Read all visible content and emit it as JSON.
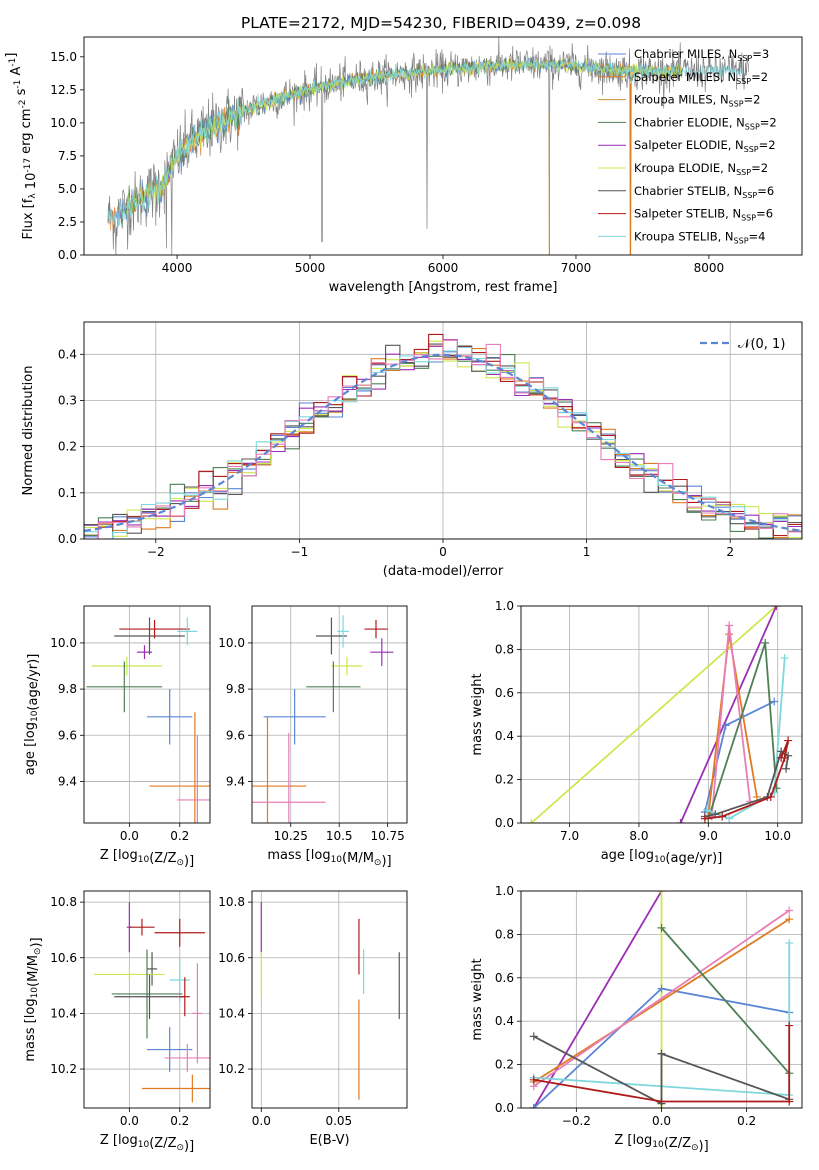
{
  "title": "PLATE=2172, MJD=54230, FIBERID=0439, z=0.098",
  "colors": {
    "chabrier_miles": "#5b86d6",
    "salpeter_miles": "#e07b21",
    "kroupa_miles": "#c99030",
    "chabrier_elodie": "#4f7f57",
    "salpeter_elodie": "#9b2fb4",
    "kroupa_elodie": "#cde84f",
    "chabrier_stelib": "#575757",
    "salpeter_stelib": "#b01c1c",
    "kroupa_stelib": "#7ed7dc",
    "gaussian": "#5b86d6",
    "extra_pink": "#e87eb7",
    "data_grey": "#808080"
  },
  "legend": [
    "Chabrier MILES, N$_{SSP}$=3",
    "Salpeter MILES, N$_{SSP}$=2",
    "Kroupa MILES, N$_{SSP}$=2",
    "Chabrier ELODIE, N$_{SSP}$=2",
    "Salpeter ELODIE, N$_{SSP}$=2",
    "Kroupa ELODIE, N$_{SSP}$=2",
    "Chabrier STELIB, N$_{SSP}$=6",
    "Salpeter STELIB, N$_{SSP}$=6",
    "Kroupa STELIB, N$_{SSP}$=4"
  ],
  "legend_display": [
    [
      "Chabrier MILES, N",
      "SSP",
      "=3"
    ],
    [
      "Salpeter MILES, N",
      "SSP",
      "=2"
    ],
    [
      "Kroupa MILES, N",
      "SSP",
      "=2"
    ],
    [
      "Chabrier ELODIE, N",
      "SSP",
      "=2"
    ],
    [
      "Salpeter ELODIE, N",
      "SSP",
      "=2"
    ],
    [
      "Kroupa ELODIE, N",
      "SSP",
      "=2"
    ],
    [
      "Chabrier STELIB, N",
      "SSP",
      "=6"
    ],
    [
      "Salpeter STELIB, N",
      "SSP",
      "=6"
    ],
    [
      "Kroupa STELIB, N",
      "SSP",
      "=4"
    ]
  ],
  "chart_data": [
    {
      "id": "spectrum",
      "type": "line",
      "xlabel": "wavelength [Angstrom, rest frame]",
      "ylabel": "Flux [f_λ 10^-17 erg cm^-2 s^-1 A^-1]",
      "xlim": [
        3300,
        8700
      ],
      "ylim": [
        0,
        16.5
      ],
      "xticks": [
        4000,
        5000,
        6000,
        7000,
        8000
      ],
      "yticks": [
        0.0,
        2.5,
        5.0,
        7.5,
        10.0,
        12.5,
        15.0
      ],
      "continuum": [
        [
          3500,
          2.8
        ],
        [
          3700,
          4.0
        ],
        [
          3900,
          5.5
        ],
        [
          4000,
          7.5
        ],
        [
          4200,
          9.3
        ],
        [
          4400,
          10.4
        ],
        [
          4600,
          11.3
        ],
        [
          4800,
          12.0
        ],
        [
          5000,
          12.5
        ],
        [
          5200,
          13.0
        ],
        [
          5500,
          13.5
        ],
        [
          5800,
          13.8
        ],
        [
          6100,
          14.1
        ],
        [
          6400,
          14.3
        ],
        [
          6700,
          14.4
        ],
        [
          7000,
          14.3
        ],
        [
          7300,
          14.0
        ],
        [
          7600,
          13.9
        ],
        [
          8000,
          13.9
        ],
        [
          8300,
          14.0
        ]
      ],
      "spikes": [
        [
          5090,
          1.0
        ],
        [
          5880,
          2.0
        ],
        [
          6800,
          0.0
        ],
        [
          7410,
          0.0
        ],
        [
          3920,
          0.5
        ],
        [
          3840,
          2.2
        ],
        [
          3540,
          0.0
        ],
        [
          3960,
          0.0
        ]
      ],
      "grid": false,
      "legend_position": "top-right"
    },
    {
      "id": "residuals",
      "type": "histogram",
      "xlabel": "(data-model)/error",
      "ylabel": "Normed distribution",
      "xlim": [
        -2.5,
        2.5
      ],
      "ylim": [
        0,
        0.47
      ],
      "xticks": [
        -2,
        -1,
        0,
        1,
        2
      ],
      "yticks": [
        0.0,
        0.1,
        0.2,
        0.3,
        0.4
      ],
      "bin_width": 0.1,
      "grid": true,
      "gaussian_label": "𝒩(0, 1)",
      "legend_position": "top-right"
    },
    {
      "id": "age_vs_Z",
      "type": "errorbar",
      "xlabel": "Z [log10(Z/Z⊙)]",
      "ylabel": "age [log10(age/yr)]",
      "xlim": [
        -0.18,
        0.32
      ],
      "ylim": [
        9.22,
        10.16
      ],
      "xticks": [
        0.0,
        0.2
      ],
      "yticks": [
        9.4,
        9.6,
        9.8,
        10.0
      ],
      "grid": true,
      "points": [
        {
          "c": "chabrier_miles",
          "x": 0.16,
          "xerr": 0.09,
          "y": 9.68,
          "yerr": 0.12
        },
        {
          "c": "salpeter_miles",
          "x": 0.26,
          "xerr": 0.18,
          "y": 9.38,
          "yerr": 0.32
        },
        {
          "c": "extra_pink",
          "x": 0.27,
          "xerr": 0.08,
          "y": 9.32,
          "yerr": 0.28
        },
        {
          "c": "kroupa_elodie",
          "x": -0.01,
          "xerr": 0.14,
          "y": 9.9,
          "yerr": 0.04
        },
        {
          "c": "chabrier_elodie",
          "x": -0.02,
          "xerr": 0.15,
          "y": 9.81,
          "yerr": 0.11
        },
        {
          "c": "chabrier_stelib",
          "x": 0.08,
          "xerr": 0.14,
          "y": 10.03,
          "yerr": 0.08
        },
        {
          "c": "salpeter_stelib",
          "x": 0.1,
          "xerr": 0.14,
          "y": 10.06,
          "yerr": 0.04
        },
        {
          "c": "salpeter_elodie",
          "x": 0.06,
          "xerr": 0.03,
          "y": 9.96,
          "yerr": 0.03
        },
        {
          "c": "kroupa_stelib",
          "x": 0.23,
          "xerr": 0.04,
          "y": 10.05,
          "yerr": 0.06
        }
      ]
    },
    {
      "id": "age_vs_mass",
      "type": "errorbar",
      "xlabel": "mass [log10(M/M⊙)]",
      "ylabel": "",
      "xlim": [
        10.05,
        10.85
      ],
      "ylim": [
        9.22,
        10.16
      ],
      "xticks": [
        10.25,
        10.5,
        10.75
      ],
      "yticks": [
        9.4,
        9.6,
        9.8,
        10.0
      ],
      "grid": true,
      "points": [
        {
          "c": "chabrier_miles",
          "x": 10.27,
          "xerr": 0.16,
          "y": 9.68,
          "yerr": 0.12
        },
        {
          "c": "salpeter_miles",
          "x": 10.13,
          "xerr": 0.2,
          "y": 9.38,
          "yerr": 0.3
        },
        {
          "c": "extra_pink",
          "x": 10.24,
          "xerr": 0.19,
          "y": 9.31,
          "yerr": 0.3
        },
        {
          "c": "kroupa_elodie",
          "x": 10.54,
          "xerr": 0.08,
          "y": 9.9,
          "yerr": 0.04
        },
        {
          "c": "chabrier_elodie",
          "x": 10.47,
          "xerr": 0.14,
          "y": 9.81,
          "yerr": 0.11
        },
        {
          "c": "chabrier_stelib",
          "x": 10.46,
          "xerr": 0.08,
          "y": 10.03,
          "yerr": 0.08
        },
        {
          "c": "salpeter_stelib",
          "x": 10.69,
          "xerr": 0.06,
          "y": 10.06,
          "yerr": 0.04
        },
        {
          "c": "salpeter_elodie",
          "x": 10.72,
          "xerr": 0.06,
          "y": 9.96,
          "yerr": 0.06
        },
        {
          "c": "kroupa_stelib",
          "x": 10.52,
          "xerr": 0.03,
          "y": 10.05,
          "yerr": 0.07
        }
      ]
    },
    {
      "id": "weight_vs_age",
      "type": "line",
      "xlabel": "age [log10(age/yr)]",
      "ylabel": "mass weight",
      "xlim": [
        6.3,
        10.35
      ],
      "ylim": [
        0,
        1.0
      ],
      "xticks": [
        7,
        8,
        9,
        10
      ],
      "yticks": [
        0.0,
        0.2,
        0.4,
        0.6,
        0.8,
        1.0
      ],
      "grid": true,
      "series": [
        {
          "c": "kroupa_elodie",
          "x": [
            6.45,
            9.98
          ],
          "y": [
            0.0,
            1.0
          ]
        },
        {
          "c": "salpeter_elodie",
          "x": [
            8.6,
            9.98
          ],
          "y": [
            0.0,
            1.0
          ]
        },
        {
          "c": "chabrier_miles",
          "x": [
            8.95,
            9.25,
            9.95
          ],
          "y": [
            0.05,
            0.45,
            0.56
          ]
        },
        {
          "c": "salpeter_miles",
          "x": [
            9.0,
            9.3,
            9.7
          ],
          "y": [
            0.03,
            0.87,
            0.12
          ]
        },
        {
          "c": "extra_pink",
          "x": [
            9.05,
            9.3,
            9.6
          ],
          "y": [
            0.03,
            0.91,
            0.1
          ]
        },
        {
          "c": "chabrier_elodie",
          "x": [
            9.0,
            9.82,
            9.98
          ],
          "y": [
            0.02,
            0.83,
            0.16
          ]
        },
        {
          "c": "kroupa_stelib",
          "x": [
            8.98,
            9.3,
            9.95,
            10.1
          ],
          "y": [
            0.06,
            0.02,
            0.14,
            0.76
          ]
        },
        {
          "c": "chabrier_stelib",
          "x": [
            8.95,
            9.1,
            9.85,
            10.05,
            10.15,
            10.12
          ],
          "y": [
            0.03,
            0.04,
            0.12,
            0.33,
            0.31,
            0.25
          ]
        },
        {
          "c": "salpeter_stelib",
          "x": [
            8.95,
            9.2,
            9.9,
            10.1,
            10.15,
            10.05
          ],
          "y": [
            0.02,
            0.03,
            0.12,
            0.3,
            0.38,
            0.3
          ]
        }
      ]
    },
    {
      "id": "mass_vs_Z",
      "type": "errorbar",
      "xlabel": "Z [log10(Z/Z⊙)]",
      "ylabel": "mass [log10(M/M⊙)]",
      "xlim": [
        -0.18,
        0.32
      ],
      "ylim": [
        10.06,
        10.84
      ],
      "xticks": [
        0.0,
        0.2
      ],
      "yticks": [
        10.2,
        10.4,
        10.6,
        10.8
      ],
      "grid": true,
      "points": [
        {
          "c": "salpeter_elodie",
          "x": 0.0,
          "xerr": 0.01,
          "y": 10.71,
          "yerr": 0.09
        },
        {
          "c": "salpeter_stelib",
          "x": 0.2,
          "xerr": 0.1,
          "y": 10.69,
          "yerr": 0.05
        },
        {
          "c": "salpeter_stelib",
          "x": 0.05,
          "xerr": 0.05,
          "y": 10.71,
          "yerr": 0.03
        },
        {
          "c": "chabrier_stelib",
          "x": 0.09,
          "xerr": 0.02,
          "y": 10.56,
          "yerr": 0.06
        },
        {
          "c": "kroupa_elodie",
          "x": 0.0,
          "xerr": 0.14,
          "y": 10.54,
          "yerr": 0.02
        },
        {
          "c": "kroupa_stelib",
          "x": 0.2,
          "xerr": 0.04,
          "y": 10.52,
          "yerr": 0.08
        },
        {
          "c": "chabrier_elodie",
          "x": 0.07,
          "xerr": 0.14,
          "y": 10.47,
          "yerr": 0.16
        },
        {
          "c": "chabrier_stelib",
          "x": 0.08,
          "xerr": 0.14,
          "y": 10.46,
          "yerr": 0.08
        },
        {
          "c": "salpeter_stelib",
          "x": 0.22,
          "xerr": 0.02,
          "y": 10.46,
          "yerr": 0.07
        },
        {
          "c": "extra_pink",
          "x": 0.27,
          "xerr": 0.02,
          "y": 10.4,
          "yerr": 0.18
        },
        {
          "c": "chabrier_miles",
          "x": 0.16,
          "xerr": 0.09,
          "y": 10.27,
          "yerr": 0.08
        },
        {
          "c": "extra_pink",
          "x": 0.23,
          "xerr": 0.09,
          "y": 10.24,
          "yerr": 0.05
        },
        {
          "c": "salpeter_miles",
          "x": 0.25,
          "xerr": 0.2,
          "y": 10.13,
          "yerr": 0.05
        }
      ]
    },
    {
      "id": "mass_vs_ebv",
      "type": "errorbar",
      "xlabel": "E(B-V)",
      "ylabel": "",
      "xlim": [
        -0.006,
        0.094
      ],
      "ylim": [
        10.06,
        10.84
      ],
      "xticks": [
        0.0,
        0.05
      ],
      "yticks": [
        10.2,
        10.4,
        10.6,
        10.8
      ],
      "grid": true,
      "points": [
        {
          "c": "salpeter_elodie",
          "x": 0.0,
          "xerr": 0.0,
          "y": 10.71,
          "yerr": 0.09
        },
        {
          "c": "kroupa_elodie",
          "x": 0.0,
          "xerr": 0.0,
          "y": 10.54,
          "yerr": 0.08
        },
        {
          "c": "salpeter_stelib",
          "x": 0.063,
          "xerr": 0.0,
          "y": 10.64,
          "yerr": 0.1
        },
        {
          "c": "kroupa_stelib",
          "x": 0.066,
          "xerr": 0.0,
          "y": 10.55,
          "yerr": 0.08
        },
        {
          "c": "salpeter_miles",
          "x": 0.063,
          "xerr": 0.0,
          "y": 10.27,
          "yerr": 0.18
        },
        {
          "c": "chabrier_stelib",
          "x": 0.089,
          "xerr": 0.0,
          "y": 10.5,
          "yerr": 0.12
        }
      ]
    },
    {
      "id": "weight_vs_Z",
      "type": "line",
      "xlabel": "Z [log10(Z/Z⊙)]",
      "ylabel": "mass weight",
      "xlim": [
        -0.33,
        0.33
      ],
      "ylim": [
        0,
        1.0
      ],
      "xticks": [
        -0.2,
        0.0,
        0.2
      ],
      "yticks": [
        0.0,
        0.2,
        0.4,
        0.6,
        0.8,
        1.0
      ],
      "grid": true,
      "series": [
        {
          "c": "salpeter_elodie",
          "x": [
            -0.3,
            0.0
          ],
          "y": [
            0.0,
            1.0
          ]
        },
        {
          "c": "kroupa_elodie",
          "x": [
            0.0,
            0.0
          ],
          "y": [
            0.0,
            1.0
          ]
        },
        {
          "c": "chabrier_miles",
          "x": [
            -0.3,
            0.0,
            0.3
          ],
          "y": [
            0.0,
            0.55,
            0.44
          ]
        },
        {
          "c": "salpeter_miles",
          "x": [
            -0.3,
            0.3
          ],
          "y": [
            0.12,
            0.87
          ]
        },
        {
          "c": "extra_pink",
          "x": [
            -0.3,
            0.3
          ],
          "y": [
            0.1,
            0.91
          ]
        },
        {
          "c": "chabrier_elodie",
          "x": [
            0.0,
            0.3
          ],
          "y": [
            0.83,
            0.16
          ]
        },
        {
          "c": "kroupa_stelib",
          "x": [
            -0.3,
            0.3,
            0.3
          ],
          "y": [
            0.14,
            0.06,
            0.76
          ]
        },
        {
          "c": "chabrier_stelib",
          "x": [
            -0.3,
            0.0,
            0.0,
            0.0,
            0.3
          ],
          "y": [
            0.33,
            0.02,
            0.25,
            0.25,
            0.04
          ]
        },
        {
          "c": "salpeter_stelib",
          "x": [
            -0.3,
            0.0,
            0.3,
            0.3
          ],
          "y": [
            0.13,
            0.03,
            0.03,
            0.38
          ]
        }
      ]
    }
  ]
}
